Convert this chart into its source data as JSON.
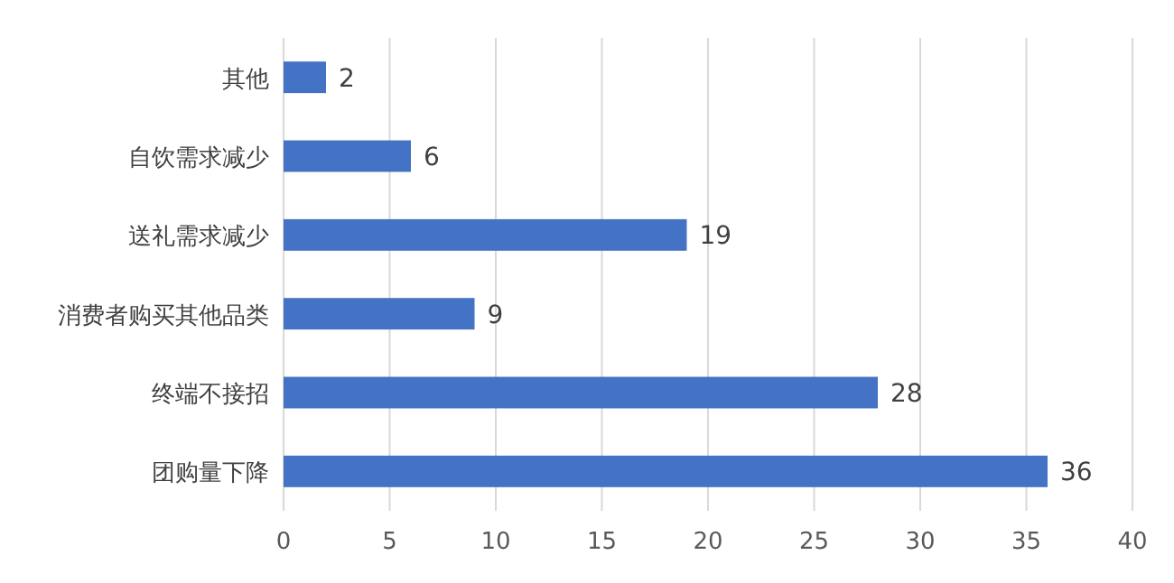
{
  "chart_data": {
    "type": "bar",
    "orientation": "horizontal",
    "categories": [
      "其他",
      "自饮需求减少",
      "送礼需求减少",
      "消费者购买其他品类",
      "终端不接招",
      "团购量下降"
    ],
    "values": [
      2,
      6,
      19,
      9,
      28,
      36
    ],
    "color": "#4472c4",
    "xlim": [
      0,
      40
    ],
    "xticks": [
      0,
      5,
      10,
      15,
      20,
      25,
      30,
      35,
      40
    ],
    "grid": "x",
    "data_labels": true
  }
}
